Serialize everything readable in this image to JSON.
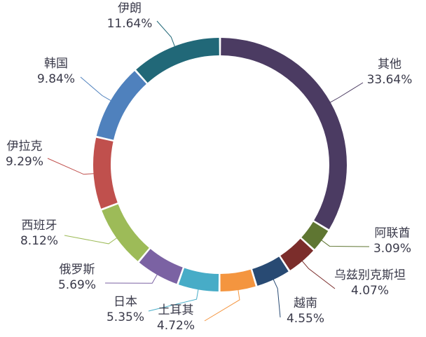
{
  "chart_data": {
    "type": "donut",
    "title": "",
    "start_angle_deg": 0,
    "direction": "clockwise",
    "slices": [
      {
        "name": "其他",
        "pct_text": "33.64%",
        "value": 33.64,
        "color": "#4b3b62"
      },
      {
        "name": "阿联酋",
        "pct_text": "3.09%",
        "value": 3.09,
        "color": "#5f7632"
      },
      {
        "name": "乌兹别克斯坦",
        "pct_text": "4.07%",
        "value": 4.07,
        "color": "#7b2d2b"
      },
      {
        "name": "越南",
        "pct_text": "4.55%",
        "value": 4.55,
        "color": "#284a73"
      },
      {
        "name": "土耳其",
        "pct_text": "4.72%",
        "value": 4.72,
        "color": "#f4953f"
      },
      {
        "name": "日本",
        "pct_text": "5.35%",
        "value": 5.35,
        "color": "#47acc7"
      },
      {
        "name": "俄罗斯",
        "pct_text": "5.69%",
        "value": 5.69,
        "color": "#7b62a3"
      },
      {
        "name": "西班牙",
        "pct_text": "8.12%",
        "value": 8.12,
        "color": "#9dbb58"
      },
      {
        "name": "伊拉克",
        "pct_text": "9.29%",
        "value": 9.29,
        "color": "#c0504d"
      },
      {
        "name": "韩国",
        "pct_text": "9.84%",
        "value": 9.84,
        "color": "#4f81bd"
      },
      {
        "name": "伊朗",
        "pct_text": "11.64%",
        "value": 11.64,
        "color": "#216878"
      }
    ]
  }
}
